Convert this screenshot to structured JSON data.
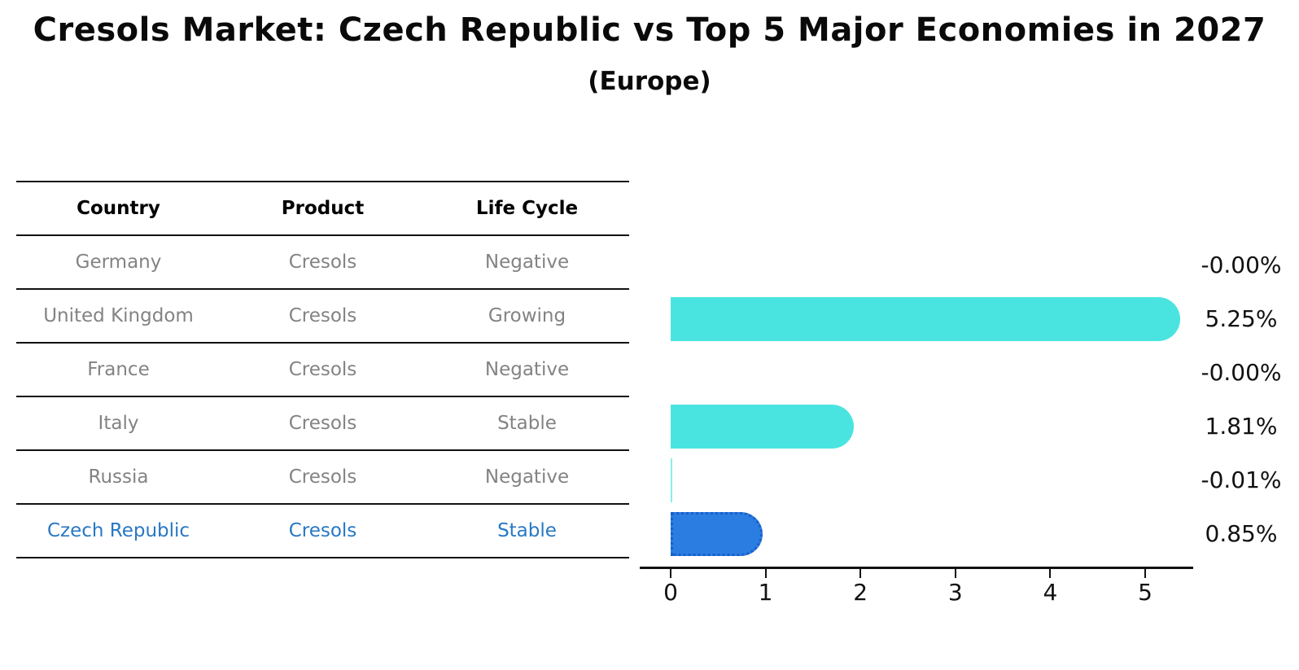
{
  "title": "Cresols Market: Czech Republic vs Top 5 Major Economies in 2027",
  "subtitle": "(Europe)",
  "table": {
    "headers": [
      "Country",
      "Product",
      "Life Cycle"
    ],
    "rows": [
      {
        "country": "Germany",
        "product": "Cresols",
        "life_cycle": "Negative",
        "highlight": false
      },
      {
        "country": "United Kingdom",
        "product": "Cresols",
        "life_cycle": "Growing",
        "highlight": false
      },
      {
        "country": "France",
        "product": "Cresols",
        "life_cycle": "Negative",
        "highlight": false
      },
      {
        "country": "Italy",
        "product": "Cresols",
        "life_cycle": "Stable",
        "highlight": false
      },
      {
        "country": "Russia",
        "product": "Cresols",
        "life_cycle": "Negative",
        "highlight": false
      },
      {
        "country": "Czech Republic",
        "product": "Cresols",
        "life_cycle": "Stable",
        "highlight": true
      }
    ]
  },
  "chart_data": {
    "type": "bar",
    "orientation": "horizontal",
    "title": "Cresols Market: Czech Republic vs Top 5 Major Economies in 2027",
    "subtitle": "(Europe)",
    "categories": [
      "Germany",
      "United Kingdom",
      "France",
      "Italy",
      "Russia",
      "Czech Republic"
    ],
    "values": [
      -0.0,
      5.25,
      -0.0,
      1.81,
      -0.01,
      0.85
    ],
    "value_labels": [
      "-0.00%",
      "5.25%",
      "-0.00%",
      "1.81%",
      "-0.01%",
      "0.85%"
    ],
    "x_ticks": [
      0,
      1,
      2,
      3,
      4,
      5
    ],
    "xlim": [
      0,
      5.5
    ],
    "grid": false,
    "legend": false,
    "highlight_index": 5,
    "colors": {
      "bar": "#4ae4e0",
      "highlight_bar": "#2b7de2",
      "highlight_border": "#1a5fc9",
      "value_label": "#111111",
      "axis": "#111111",
      "table_text": "#838383",
      "table_header": "#000000",
      "highlight_text": "#2878c4"
    }
  }
}
